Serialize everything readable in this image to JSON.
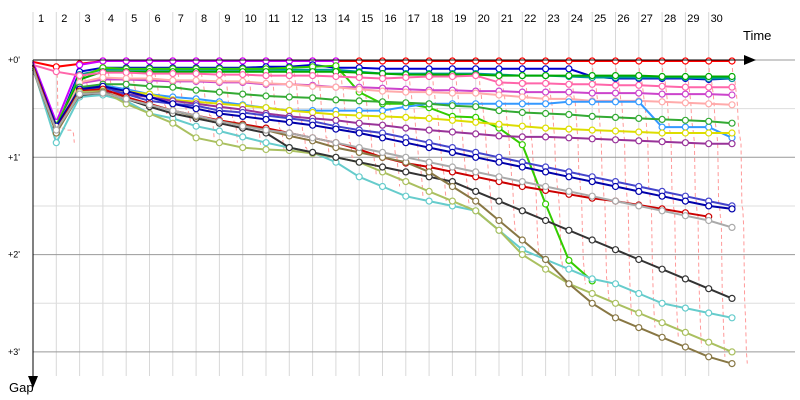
{
  "chart_data": {
    "type": "line",
    "x_axis_label": "Time",
    "y_axis_label": "Gap",
    "x_ticks": [
      "1",
      "2",
      "3",
      "4",
      "5",
      "6",
      "7",
      "8",
      "9",
      "10",
      "11",
      "12",
      "13",
      "14",
      "15",
      "16",
      "17",
      "18",
      "19",
      "20",
      "21",
      "22",
      "23",
      "24",
      "25",
      "26",
      "27",
      "28",
      "29",
      "30"
    ],
    "y_ticks": [
      "+0'",
      "+1'",
      "+2'",
      "+3'"
    ],
    "xlim": [
      1,
      31.3
    ],
    "ylim": [
      0,
      3.25
    ],
    "y_units": "minutes",
    "grid": true,
    "connector_color": "#ff9999",
    "series": [
      {
        "color": "#ff0000",
        "values": [
          0.02,
          0.07,
          0.04,
          0.01,
          0.01,
          0.01,
          0.01,
          0.01,
          0.01,
          0.01,
          0.01,
          0.01,
          0.01,
          0.01,
          0.01,
          0.01,
          0.01,
          0.01,
          0.01,
          0.01,
          0.01,
          0.01,
          0.01,
          0.01,
          0.01,
          0.01,
          0.01,
          0.01,
          0.01,
          0.01,
          0.01
        ]
      },
      {
        "color": "#cc00ff",
        "values": [
          0.02,
          0.64,
          0.05,
          0.01,
          0.01,
          0.01,
          0.01,
          0.01,
          0.01,
          0.01,
          0.01,
          0.01,
          0.01,
          0.01
        ]
      },
      {
        "color": "#0000cc",
        "values": [
          0.05,
          0.7,
          0.12,
          0.08,
          0.08,
          0.08,
          0.08,
          0.08,
          0.08,
          0.08,
          0.07,
          0.07,
          0.05,
          0.08,
          0.08,
          0.09,
          0.09,
          0.09,
          0.09,
          0.09,
          0.09,
          0.09,
          0.09,
          0.09,
          0.17,
          0.19,
          0.19,
          0.19,
          0.19,
          0.2,
          0.19
        ]
      },
      {
        "color": "#009999",
        "values": [
          0.08,
          0.72,
          0.15,
          0.1,
          0.1,
          0.1,
          0.1,
          0.1,
          0.1,
          0.1,
          0.1,
          0.1,
          0.1,
          0.1,
          0.12,
          0.14,
          0.14,
          0.14,
          0.14,
          0.14,
          0.15,
          0.16,
          0.16,
          0.17,
          0.18,
          0.18,
          0.18,
          0.18,
          0.18,
          0.19,
          0.19
        ]
      },
      {
        "color": "#33cc00",
        "values": [
          0.1,
          0.67,
          0.18,
          0.08,
          0.09,
          0.09,
          0.09,
          0.09,
          0.09,
          0.09,
          0.09,
          0.08,
          0.07,
          0.06,
          0.33,
          0.45,
          0.45,
          0.49,
          0.58,
          0.59,
          0.7,
          0.87,
          1.48,
          2.06,
          2.27
        ]
      },
      {
        "color": "#00aa00",
        "values": [
          0.1,
          0.7,
          0.2,
          0.12,
          0.12,
          0.12,
          0.12,
          0.12,
          0.12,
          0.12,
          0.12,
          0.12,
          0.12,
          0.12,
          0.13,
          0.14,
          0.15,
          0.15,
          0.15,
          0.15,
          0.16,
          0.16,
          0.16,
          0.16,
          0.16,
          0.16,
          0.16,
          0.17,
          0.17,
          0.17,
          0.17
        ]
      },
      {
        "color": "#ff66aa",
        "values": [
          0.05,
          0.12,
          0.16,
          0.13,
          0.13,
          0.14,
          0.14,
          0.14,
          0.15,
          0.15,
          0.16,
          0.16,
          0.16,
          0.17,
          0.18,
          0.19,
          0.18,
          0.17,
          0.17,
          0.16,
          0.23,
          0.24,
          0.24,
          0.25,
          0.25,
          0.26,
          0.26,
          0.27,
          0.28,
          0.28,
          0.28
        ]
      },
      {
        "color": "#cc44cc",
        "values": [
          0.05,
          0.7,
          0.24,
          0.2,
          0.2,
          0.21,
          0.22,
          0.22,
          0.23,
          0.23,
          0.25,
          0.25,
          0.26,
          0.28,
          0.28,
          0.29,
          0.3,
          0.31,
          0.31,
          0.32,
          0.32,
          0.33,
          0.33,
          0.33,
          0.34,
          0.34,
          0.34,
          0.35,
          0.35,
          0.35,
          0.36
        ]
      },
      {
        "color": "#ffaaaa",
        "values": [
          0.08,
          0.73,
          0.23,
          0.18,
          0.19,
          0.19,
          0.21,
          0.21,
          0.22,
          0.22,
          0.24,
          0.25,
          0.27,
          0.28,
          0.3,
          0.32,
          0.33,
          0.33,
          0.34,
          0.34,
          0.36,
          0.38,
          0.4,
          0.4,
          0.42,
          0.42,
          0.42,
          0.43,
          0.44,
          0.45,
          0.46
        ]
      },
      {
        "color": "#3399ff",
        "values": [
          0.08,
          0.72,
          0.28,
          0.26,
          0.3,
          0.35,
          0.38,
          0.4,
          0.43,
          0.46,
          0.49,
          0.52,
          0.52,
          0.52,
          0.52,
          0.52,
          0.48,
          0.45,
          0.45,
          0.45,
          0.45,
          0.45,
          0.45,
          0.43,
          0.43,
          0.43,
          0.43,
          0.69,
          0.69,
          0.69,
          0.8
        ]
      },
      {
        "color": "#33aa33",
        "values": [
          0.1,
          0.72,
          0.28,
          0.25,
          0.25,
          0.27,
          0.28,
          0.31,
          0.33,
          0.35,
          0.37,
          0.38,
          0.39,
          0.41,
          0.42,
          0.43,
          0.44,
          0.45,
          0.47,
          0.48,
          0.52,
          0.54,
          0.55,
          0.56,
          0.58,
          0.59,
          0.6,
          0.61,
          0.62,
          0.63,
          0.65
        ]
      },
      {
        "color": "#dddd00",
        "values": [
          0.05,
          0.7,
          0.3,
          0.29,
          0.32,
          0.35,
          0.41,
          0.43,
          0.45,
          0.47,
          0.49,
          0.52,
          0.54,
          0.56,
          0.57,
          0.58,
          0.59,
          0.6,
          0.62,
          0.64,
          0.66,
          0.68,
          0.7,
          0.71,
          0.72,
          0.73,
          0.74,
          0.75,
          0.75,
          0.75,
          0.75
        ]
      },
      {
        "color": "#993399",
        "values": [
          0.05,
          0.72,
          0.35,
          0.32,
          0.35,
          0.38,
          0.42,
          0.45,
          0.48,
          0.51,
          0.55,
          0.58,
          0.6,
          0.62,
          0.65,
          0.67,
          0.7,
          0.72,
          0.74,
          0.76,
          0.78,
          0.79,
          0.79,
          0.8,
          0.81,
          0.82,
          0.83,
          0.84,
          0.85,
          0.86,
          0.86
        ]
      },
      {
        "color": "#4444cc",
        "values": [
          0.08,
          0.7,
          0.3,
          0.28,
          0.35,
          0.42,
          0.45,
          0.47,
          0.52,
          0.54,
          0.57,
          0.6,
          0.63,
          0.68,
          0.72,
          0.75,
          0.8,
          0.85,
          0.9,
          0.95,
          1.0,
          1.05,
          1.1,
          1.15,
          1.2,
          1.25,
          1.3,
          1.35,
          1.4,
          1.45,
          1.5
        ]
      },
      {
        "color": "#0000aa",
        "values": [
          0.05,
          0.68,
          0.3,
          0.27,
          0.32,
          0.38,
          0.45,
          0.5,
          0.55,
          0.58,
          0.61,
          0.64,
          0.67,
          0.71,
          0.75,
          0.8,
          0.85,
          0.9,
          0.95,
          1.0,
          1.05,
          1.1,
          1.15,
          1.2,
          1.25,
          1.3,
          1.35,
          1.4,
          1.45,
          1.5,
          1.53
        ]
      },
      {
        "color": "#cc0000",
        "values": [
          0.06,
          0.72,
          0.32,
          0.3,
          0.38,
          0.45,
          0.52,
          0.57,
          0.62,
          0.66,
          0.7,
          0.75,
          0.8,
          0.85,
          0.92,
          1.0,
          1.06,
          1.1,
          1.15,
          1.2,
          1.25,
          1.3,
          1.34,
          1.38,
          1.42,
          1.45,
          1.49,
          1.53,
          1.57,
          1.61
        ]
      },
      {
        "color": "#66cccc",
        "values": [
          0.08,
          0.85,
          0.38,
          0.36,
          0.42,
          0.55,
          0.6,
          0.68,
          0.73,
          0.79,
          0.85,
          0.9,
          0.95,
          1.05,
          1.2,
          1.3,
          1.4,
          1.45,
          1.5,
          1.55,
          1.75,
          1.95,
          2.05,
          2.15,
          2.25,
          2.3,
          2.4,
          2.5,
          2.55,
          2.6,
          2.65
        ]
      },
      {
        "color": "#aac060",
        "values": [
          0.08,
          0.75,
          0.33,
          0.32,
          0.45,
          0.55,
          0.65,
          0.8,
          0.85,
          0.9,
          0.92,
          0.93,
          0.96,
          1.0,
          1.05,
          1.15,
          1.25,
          1.35,
          1.45,
          1.55,
          1.75,
          2.0,
          2.15,
          2.3,
          2.4,
          2.5,
          2.6,
          2.7,
          2.8,
          2.9,
          3.0
        ]
      },
      {
        "color": "#333333",
        "values": [
          0.1,
          0.72,
          0.36,
          0.34,
          0.4,
          0.48,
          0.55,
          0.6,
          0.65,
          0.7,
          0.75,
          0.9,
          0.95,
          1.0,
          1.05,
          1.1,
          1.15,
          1.2,
          1.25,
          1.35,
          1.45,
          1.55,
          1.65,
          1.75,
          1.85,
          1.95,
          2.05,
          2.15,
          2.25,
          2.35,
          2.45
        ]
      },
      {
        "color": "#887744",
        "values": [
          0.1,
          0.75,
          0.35,
          0.33,
          0.4,
          0.46,
          0.52,
          0.58,
          0.63,
          0.67,
          0.72,
          0.78,
          0.83,
          0.9,
          0.95,
          1.0,
          1.05,
          1.15,
          1.3,
          1.45,
          1.65,
          1.85,
          2.05,
          2.3,
          2.5,
          2.65,
          2.75,
          2.85,
          2.95,
          3.05,
          3.12
        ]
      },
      {
        "color": "#aaaaaa",
        "values": [
          0.1,
          0.72,
          0.35,
          0.34,
          0.4,
          0.46,
          0.52,
          0.57,
          0.63,
          0.68,
          0.72,
          0.75,
          0.8,
          0.85,
          0.9,
          0.95,
          1.0,
          1.05,
          1.1,
          1.15,
          1.2,
          1.25,
          1.3,
          1.35,
          1.4,
          1.45,
          1.5,
          1.55,
          1.6,
          1.65,
          1.72
        ]
      }
    ]
  }
}
